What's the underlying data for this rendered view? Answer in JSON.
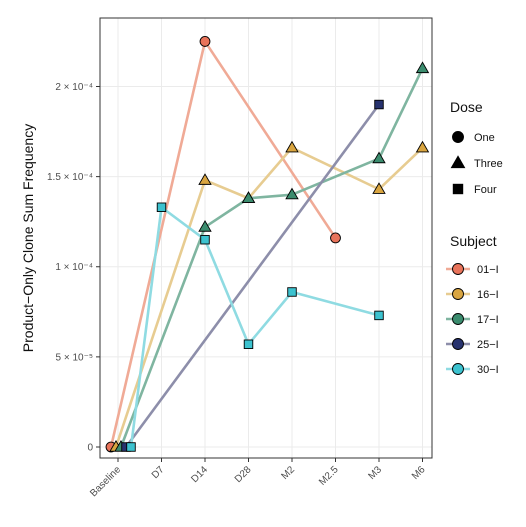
{
  "chart_data": {
    "type": "line",
    "ylabel": "Product−Only Clone Sum Frequency",
    "xlabel": "",
    "categories": [
      "Baseline",
      "D7",
      "D14",
      "D28",
      "M2",
      "M2.5",
      "M3",
      "M6"
    ],
    "ylim": [
      0,
      0.000238
    ],
    "yticks": [
      {
        "value": 0,
        "label": "0"
      },
      {
        "value": 5e-05,
        "label": "5 × 10⁻⁵"
      },
      {
        "value": 0.0001,
        "label": "1 × 10⁻⁴"
      },
      {
        "value": 0.00015,
        "label": "1.5 × 10⁻⁴"
      },
      {
        "value": 0.0002,
        "label": "2 × 10⁻⁴"
      }
    ],
    "grid": true,
    "legend_position": "right",
    "series": [
      {
        "name": "01−I",
        "color": "#e8735a",
        "line_color": "#f0aa96",
        "dose": "One",
        "points": [
          [
            "Baseline",
            0
          ],
          [
            "D14",
            0.000225
          ],
          [
            "M2.5",
            0.000116
          ]
        ]
      },
      {
        "name": "16−I",
        "color": "#d9a540",
        "line_color": "#e7cc91",
        "dose": "Three",
        "points": [
          [
            "Baseline",
            0
          ],
          [
            "D14",
            0.000148
          ],
          [
            "D28",
            0.000138
          ],
          [
            "M2",
            0.000166
          ],
          [
            "M3",
            0.000143
          ],
          [
            "M6",
            0.000166
          ]
        ]
      },
      {
        "name": "17−I",
        "color": "#3b8c6e",
        "line_color": "#7fb5a0",
        "dose": "Three",
        "points": [
          [
            "Baseline",
            0
          ],
          [
            "D14",
            0.000122
          ],
          [
            "D28",
            0.000138
          ],
          [
            "M2",
            0.00014
          ],
          [
            "M3",
            0.00016
          ],
          [
            "M6",
            0.00021
          ]
        ]
      },
      {
        "name": "25−I",
        "color": "#27326e",
        "line_color": "#8d8eaa",
        "dose": "Four",
        "points": [
          [
            "Baseline",
            0
          ],
          [
            "M3",
            0.00019
          ]
        ]
      },
      {
        "name": "30−I",
        "color": "#3cc2cf",
        "line_color": "#8fdbe2",
        "dose": "Four",
        "points": [
          [
            "Baseline",
            0
          ],
          [
            "D7",
            0.000133
          ],
          [
            "D14",
            0.000115
          ],
          [
            "D28",
            5.7e-05
          ],
          [
            "M2",
            8.6e-05
          ],
          [
            "M3",
            7.3e-05
          ]
        ]
      }
    ]
  },
  "legend": {
    "dose_title": "Dose",
    "dose_items": [
      {
        "label": "One",
        "shape": "circle"
      },
      {
        "label": "Three",
        "shape": "triangle"
      },
      {
        "label": "Four",
        "shape": "square"
      }
    ],
    "subject_title": "Subject"
  }
}
